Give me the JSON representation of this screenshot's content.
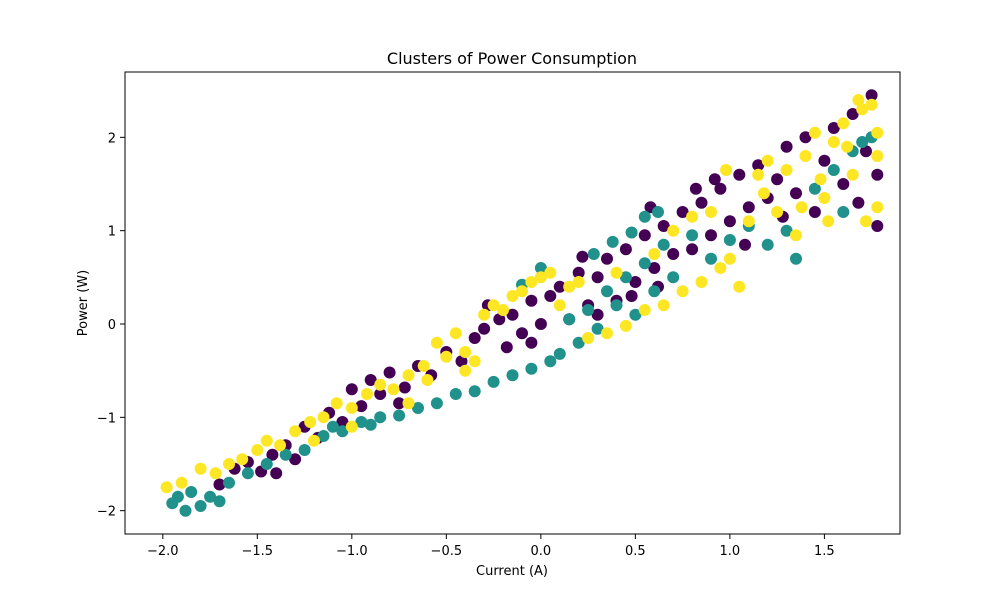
{
  "chart_data": {
    "type": "scatter",
    "title": "Clusters of Power Consumption",
    "xlabel": "Current (A)",
    "ylabel": "Power (W)",
    "xlim": [
      -2.2,
      1.9
    ],
    "ylim": [
      -2.25,
      2.7
    ],
    "xticks": [
      -2.0,
      -1.5,
      -1.0,
      -0.5,
      0.0,
      0.5,
      1.0,
      1.5
    ],
    "xtick_labels": [
      "−2.0",
      "−1.5",
      "−1.0",
      "−0.5",
      "0.0",
      "0.5",
      "1.0",
      "1.5"
    ],
    "yticks": [
      -2,
      -1,
      0,
      1,
      2
    ],
    "ytick_labels": [
      "−2",
      "−1",
      "0",
      "1",
      "2"
    ],
    "grid": false,
    "legend": "none",
    "colors": {
      "cluster_0": "#440154",
      "cluster_1": "#21918c",
      "cluster_2": "#fde725"
    },
    "series": [
      {
        "cluster": 0,
        "color": "#440154",
        "points": [
          [
            -1.7,
            -1.72
          ],
          [
            -1.62,
            -1.55
          ],
          [
            -1.55,
            -1.48
          ],
          [
            -1.48,
            -1.58
          ],
          [
            -1.42,
            -1.4
          ],
          [
            -1.35,
            -1.3
          ],
          [
            -1.3,
            -1.45
          ],
          [
            -1.25,
            -1.1
          ],
          [
            -1.18,
            -1.22
          ],
          [
            -1.12,
            -0.95
          ],
          [
            -1.05,
            -1.05
          ],
          [
            -1.0,
            -0.7
          ],
          [
            -0.95,
            -0.88
          ],
          [
            -0.9,
            -0.6
          ],
          [
            -0.85,
            -0.75
          ],
          [
            -0.8,
            -0.52
          ],
          [
            -0.72,
            -0.68
          ],
          [
            -0.65,
            -0.45
          ],
          [
            -0.58,
            -0.55
          ],
          [
            -0.5,
            -0.3
          ],
          [
            -0.42,
            -0.4
          ],
          [
            -0.35,
            -0.15
          ],
          [
            -0.3,
            -0.05
          ],
          [
            -0.22,
            0.05
          ],
          [
            -0.15,
            0.1
          ],
          [
            -0.1,
            -0.1
          ],
          [
            -0.05,
            0.25
          ],
          [
            0.0,
            0.0
          ],
          [
            0.05,
            0.3
          ],
          [
            0.1,
            0.4
          ],
          [
            0.15,
            0.05
          ],
          [
            0.2,
            0.55
          ],
          [
            0.25,
            0.2
          ],
          [
            0.3,
            0.5
          ],
          [
            0.35,
            0.7
          ],
          [
            0.4,
            0.25
          ],
          [
            0.45,
            0.8
          ],
          [
            0.5,
            0.45
          ],
          [
            0.55,
            0.95
          ],
          [
            0.6,
            0.6
          ],
          [
            0.65,
            1.05
          ],
          [
            0.7,
            0.75
          ],
          [
            0.75,
            1.2
          ],
          [
            0.8,
            0.8
          ],
          [
            0.85,
            1.3
          ],
          [
            0.9,
            0.95
          ],
          [
            0.95,
            1.45
          ],
          [
            1.0,
            1.1
          ],
          [
            1.05,
            1.6
          ],
          [
            1.1,
            1.25
          ],
          [
            1.15,
            1.7
          ],
          [
            1.2,
            1.35
          ],
          [
            1.25,
            1.55
          ],
          [
            1.3,
            1.9
          ],
          [
            1.35,
            1.4
          ],
          [
            1.4,
            2.0
          ],
          [
            1.45,
            1.2
          ],
          [
            1.5,
            1.75
          ],
          [
            1.55,
            2.1
          ],
          [
            1.6,
            1.5
          ],
          [
            1.65,
            2.25
          ],
          [
            1.68,
            1.3
          ],
          [
            1.72,
            1.85
          ],
          [
            1.75,
            2.45
          ],
          [
            1.78,
            1.6
          ],
          [
            1.78,
            1.05
          ],
          [
            0.3,
            0.1
          ],
          [
            0.48,
            0.3
          ],
          [
            0.62,
            0.4
          ],
          [
            -0.05,
            -0.2
          ],
          [
            -0.18,
            -0.25
          ],
          [
            0.82,
            1.45
          ],
          [
            1.08,
            0.85
          ],
          [
            0.58,
            1.25
          ],
          [
            -0.75,
            -0.85
          ],
          [
            -1.4,
            -1.6
          ],
          [
            -0.28,
            0.2
          ],
          [
            0.22,
            0.72
          ],
          [
            1.28,
            1.15
          ],
          [
            0.92,
            1.55
          ]
        ]
      },
      {
        "cluster": 1,
        "color": "#21918c",
        "points": [
          [
            -1.95,
            -1.92
          ],
          [
            -1.92,
            -1.85
          ],
          [
            -1.88,
            -2.0
          ],
          [
            -1.85,
            -1.8
          ],
          [
            -1.8,
            -1.95
          ],
          [
            -1.75,
            -1.85
          ],
          [
            -1.7,
            -1.9
          ],
          [
            -1.65,
            -1.7
          ],
          [
            -1.55,
            -1.6
          ],
          [
            -1.45,
            -1.5
          ],
          [
            -1.35,
            -1.4
          ],
          [
            -1.25,
            -1.35
          ],
          [
            -1.15,
            -1.2
          ],
          [
            -1.05,
            -1.15
          ],
          [
            -0.95,
            -1.05
          ],
          [
            -0.85,
            -1.0
          ],
          [
            -0.75,
            -0.98
          ],
          [
            -0.65,
            -0.9
          ],
          [
            -0.55,
            -0.85
          ],
          [
            -0.45,
            -0.75
          ],
          [
            -0.35,
            -0.72
          ],
          [
            -0.25,
            -0.62
          ],
          [
            -0.15,
            -0.55
          ],
          [
            -0.05,
            -0.48
          ],
          [
            0.05,
            -0.4
          ],
          [
            0.1,
            -0.32
          ],
          [
            0.15,
            0.05
          ],
          [
            0.2,
            -0.2
          ],
          [
            0.25,
            0.15
          ],
          [
            0.3,
            -0.05
          ],
          [
            0.35,
            0.35
          ],
          [
            0.4,
            0.2
          ],
          [
            0.45,
            0.5
          ],
          [
            0.5,
            0.1
          ],
          [
            0.55,
            0.65
          ],
          [
            0.6,
            0.35
          ],
          [
            0.65,
            0.85
          ],
          [
            0.7,
            0.5
          ],
          [
            0.8,
            0.95
          ],
          [
            0.9,
            0.7
          ],
          [
            1.0,
            0.9
          ],
          [
            1.1,
            1.05
          ],
          [
            1.2,
            0.85
          ],
          [
            1.3,
            1.0
          ],
          [
            1.35,
            0.7
          ],
          [
            1.45,
            1.45
          ],
          [
            1.55,
            1.65
          ],
          [
            1.6,
            1.2
          ],
          [
            1.65,
            1.85
          ],
          [
            1.7,
            1.95
          ],
          [
            1.75,
            2.0
          ],
          [
            0.55,
            1.15
          ],
          [
            0.62,
            1.2
          ],
          [
            0.48,
            0.98
          ],
          [
            -1.1,
            -1.1
          ],
          [
            -0.9,
            -1.08
          ],
          [
            0.0,
            0.6
          ],
          [
            -0.1,
            0.42
          ],
          [
            0.28,
            0.75
          ],
          [
            0.38,
            0.88
          ]
        ]
      },
      {
        "cluster": 2,
        "color": "#fde725",
        "points": [
          [
            -1.98,
            -1.75
          ],
          [
            -1.9,
            -1.7
          ],
          [
            -1.8,
            -1.55
          ],
          [
            -1.72,
            -1.6
          ],
          [
            -1.65,
            -1.5
          ],
          [
            -1.58,
            -1.45
          ],
          [
            -1.5,
            -1.35
          ],
          [
            -1.45,
            -1.25
          ],
          [
            -1.38,
            -1.3
          ],
          [
            -1.3,
            -1.15
          ],
          [
            -1.22,
            -1.05
          ],
          [
            -1.15,
            -1.0
          ],
          [
            -1.08,
            -0.85
          ],
          [
            -1.0,
            -0.9
          ],
          [
            -0.92,
            -0.75
          ],
          [
            -0.85,
            -0.65
          ],
          [
            -0.78,
            -0.7
          ],
          [
            -0.7,
            -0.55
          ],
          [
            -0.62,
            -0.45
          ],
          [
            -0.55,
            -0.2
          ],
          [
            -0.5,
            -0.35
          ],
          [
            -0.45,
            -0.1
          ],
          [
            -0.4,
            -0.3
          ],
          [
            -0.35,
            -0.4
          ],
          [
            -0.3,
            0.1
          ],
          [
            -0.25,
            0.2
          ],
          [
            -0.2,
            0.15
          ],
          [
            -0.15,
            0.3
          ],
          [
            -0.1,
            0.35
          ],
          [
            -0.05,
            0.45
          ],
          [
            0.0,
            0.5
          ],
          [
            0.05,
            0.55
          ],
          [
            0.15,
            0.4
          ],
          [
            0.2,
            0.45
          ],
          [
            0.25,
            -0.15
          ],
          [
            0.35,
            -0.1
          ],
          [
            0.45,
            -0.02
          ],
          [
            0.55,
            0.15
          ],
          [
            0.65,
            0.2
          ],
          [
            0.75,
            0.35
          ],
          [
            0.85,
            0.45
          ],
          [
            0.95,
            0.6
          ],
          [
            1.0,
            0.7
          ],
          [
            1.05,
            0.4
          ],
          [
            1.1,
            1.1
          ],
          [
            1.15,
            1.6
          ],
          [
            1.2,
            1.75
          ],
          [
            1.25,
            1.2
          ],
          [
            1.3,
            1.65
          ],
          [
            1.35,
            0.95
          ],
          [
            1.4,
            1.8
          ],
          [
            1.45,
            2.05
          ],
          [
            1.5,
            1.35
          ],
          [
            1.55,
            1.95
          ],
          [
            1.6,
            2.15
          ],
          [
            1.65,
            1.6
          ],
          [
            1.7,
            2.3
          ],
          [
            1.72,
            1.1
          ],
          [
            1.75,
            2.35
          ],
          [
            1.78,
            1.8
          ],
          [
            1.78,
            2.05
          ],
          [
            1.78,
            1.25
          ],
          [
            1.62,
            1.9
          ],
          [
            1.48,
            1.55
          ],
          [
            1.38,
            1.25
          ],
          [
            0.7,
            1.0
          ],
          [
            0.8,
            1.15
          ],
          [
            0.9,
            1.2
          ],
          [
            0.6,
            0.75
          ],
          [
            0.4,
            0.55
          ],
          [
            -0.6,
            -0.6
          ],
          [
            -0.4,
            -0.5
          ],
          [
            -1.0,
            -1.1
          ],
          [
            -1.2,
            -1.25
          ],
          [
            -0.7,
            -0.85
          ],
          [
            1.18,
            1.4
          ],
          [
            1.52,
            1.1
          ],
          [
            1.68,
            2.4
          ],
          [
            0.98,
            1.65
          ],
          [
            0.1,
            0.2
          ]
        ]
      }
    ]
  }
}
